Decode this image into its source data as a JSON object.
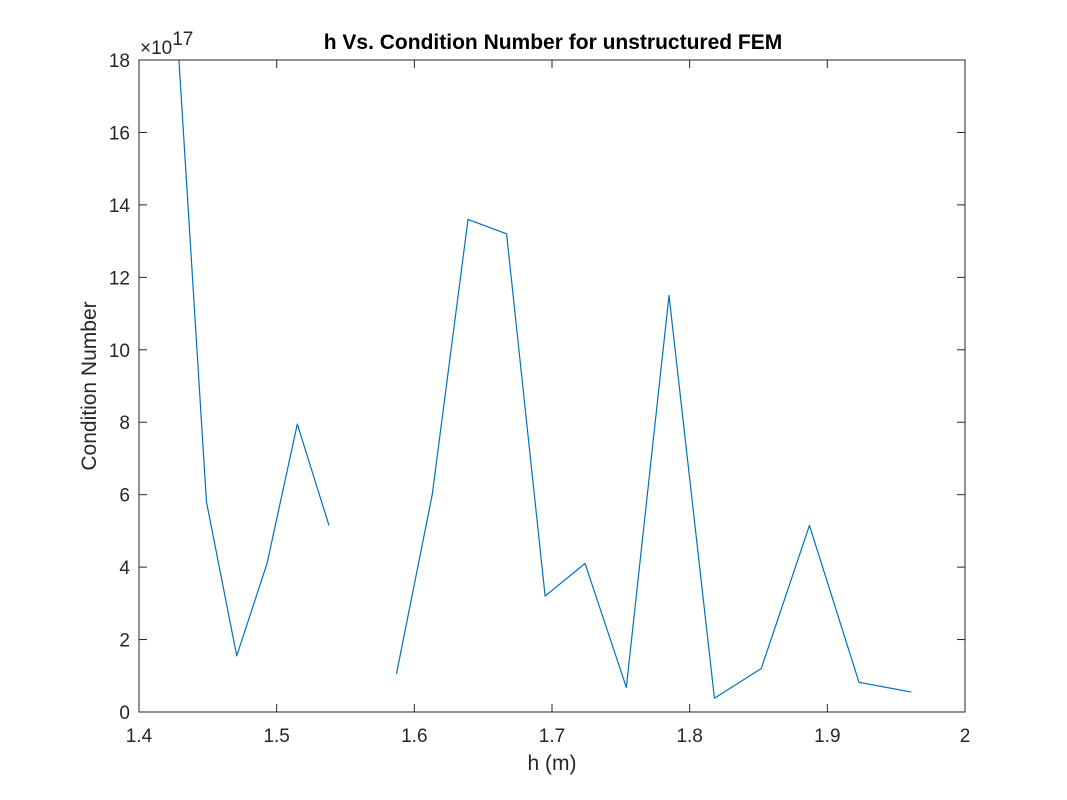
{
  "chart_data": {
    "type": "line",
    "title": "h Vs. Condition Number for unstructured FEM",
    "xlabel": "h (m)",
    "ylabel": "Condition Number",
    "xlim": [
      1.4,
      2.0
    ],
    "ylim": [
      0,
      18
    ],
    "y_multiplier": "×10",
    "y_exponent": "17",
    "xticks": [
      "1.4",
      "1.5",
      "1.6",
      "1.7",
      "1.8",
      "1.9",
      "2"
    ],
    "yticks": [
      "0",
      "2",
      "4",
      "6",
      "8",
      "10",
      "12",
      "14",
      "16",
      "18"
    ],
    "grid": false,
    "color": "#0072BD",
    "series": [
      {
        "segments": [
          [
            [
              1.429,
              18.0
            ],
            [
              1.449,
              5.8
            ],
            [
              1.471,
              1.55
            ],
            [
              1.493,
              4.1
            ],
            [
              1.515,
              7.95
            ],
            [
              1.538,
              5.15
            ]
          ],
          [
            [
              1.587,
              1.05
            ],
            [
              1.613,
              6.0
            ],
            [
              1.639,
              13.6
            ],
            [
              1.667,
              13.2
            ],
            [
              1.695,
              3.2
            ],
            [
              1.724,
              4.1
            ],
            [
              1.754,
              0.68
            ],
            [
              1.785,
              11.5
            ],
            [
              1.818,
              0.38
            ],
            [
              1.852,
              1.2
            ],
            [
              1.887,
              5.15
            ],
            [
              1.923,
              0.82
            ],
            [
              1.961,
              0.55
            ]
          ]
        ]
      }
    ]
  }
}
